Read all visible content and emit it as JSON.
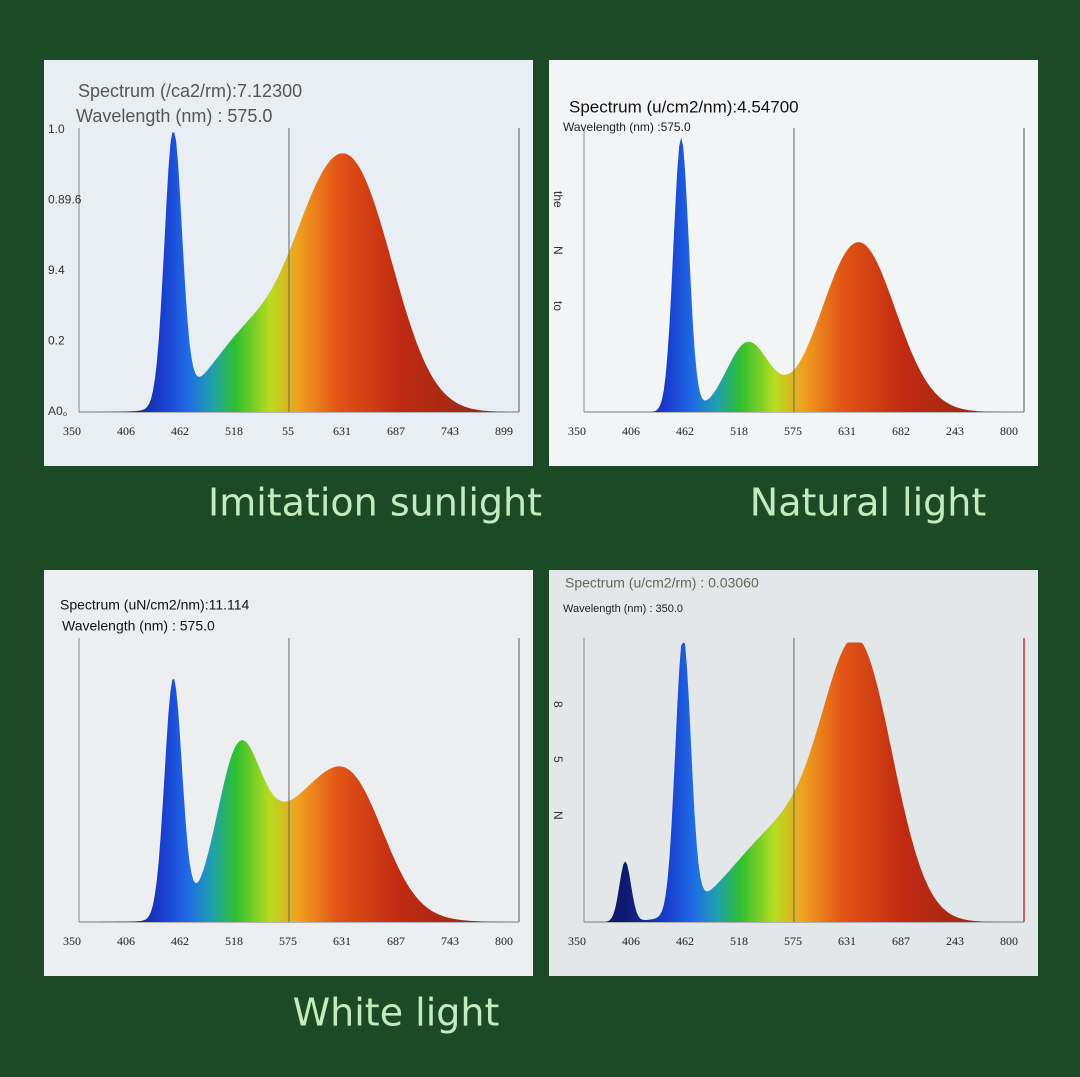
{
  "panels": [
    {
      "spectrum": "Spectrum (/ca2/rm):7.12300",
      "wavelength": "Wavelength (nm) : 575.0",
      "y_labels": [
        "1.0",
        "0.89.6",
        "9.4",
        "0.2",
        "A0。"
      ],
      "x_labels": [
        "350",
        "406",
        "462",
        "518",
        "55",
        "631",
        "687",
        "743",
        "899"
      ]
    },
    {
      "spectrum": "Spectrum (u/cm2/nm):4.54700",
      "wavelength": "Wavelength (nm) :575.0",
      "y_labels": [
        "the",
        "N",
        "to"
      ],
      "x_labels": [
        "350",
        "406",
        "462",
        "518",
        "575",
        "631",
        "682",
        "243",
        "800"
      ]
    },
    {
      "spectrum": "Spectrum (uN/cm2/nm):11.114",
      "wavelength": "Wavelength (nm) : 575.0",
      "y_labels": [],
      "x_labels": [
        "350",
        "406",
        "462",
        "518",
        "575",
        "631",
        "687",
        "743",
        "800"
      ]
    },
    {
      "spectrum": "Spectrum (u/cm2/rm) : 0.03060",
      "wavelength": "Wavelength (nm) : 350.0",
      "y_labels": [
        "8",
        "5",
        "N"
      ],
      "x_labels": [
        "350",
        "406",
        "462",
        "518",
        "575",
        "631",
        "687",
        "243",
        "800"
      ]
    }
  ],
  "captions": [
    "Imitation sunlight",
    "Natural light",
    "White light"
  ]
}
